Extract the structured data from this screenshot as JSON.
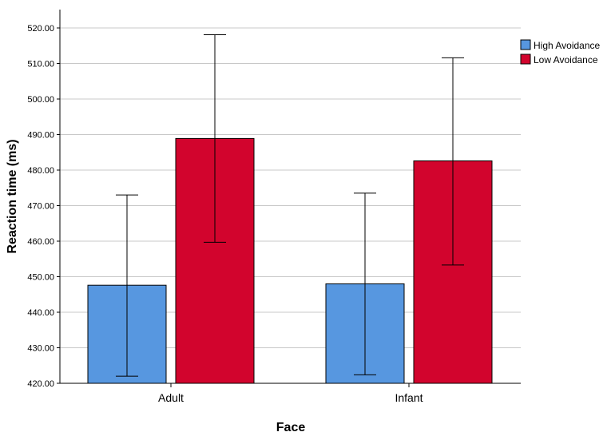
{
  "chart_data": {
    "type": "bar",
    "categories": [
      "Adult",
      "Infant"
    ],
    "xlabel": "Face",
    "ylabel": "Reaction time (ms)",
    "ylim": [
      420,
      520
    ],
    "yticks": [
      "420.00",
      "430.00",
      "440.00",
      "450.00",
      "460.00",
      "470.00",
      "480.00",
      "490.00",
      "500.00",
      "510.00",
      "520.00"
    ],
    "grid": true,
    "legend_position": "top-right",
    "series": [
      {
        "name": "High Avoidance",
        "color": "#5797e0",
        "values": [
          447.6,
          448.0
        ],
        "error_low": [
          422.0,
          422.4
        ],
        "error_high": [
          473.0,
          473.5
        ]
      },
      {
        "name": "Low Avoidance",
        "color": "#d2042d",
        "values": [
          488.9,
          482.6
        ],
        "error_low": [
          459.7,
          453.3
        ],
        "error_high": [
          518.1,
          511.6
        ]
      }
    ]
  }
}
